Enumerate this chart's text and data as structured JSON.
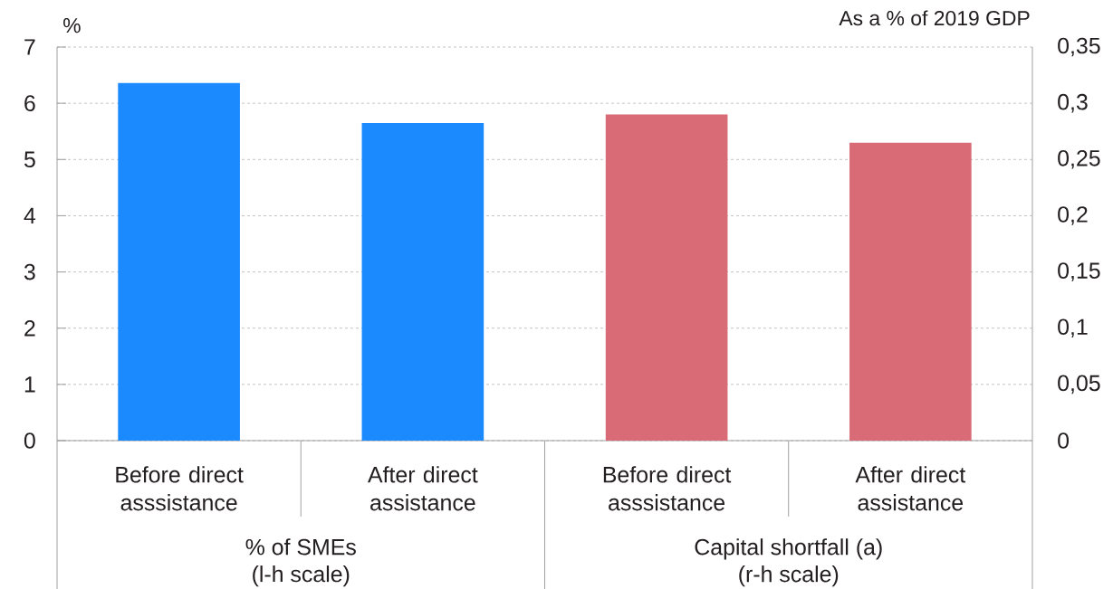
{
  "chart_data": {
    "type": "bar",
    "ylabel": "%",
    "y2label": "As a % of 2019 GDP",
    "categories": [
      "Before direct asssistance",
      "After direct assistance",
      "Before direct asssistance",
      "After direct assistance"
    ],
    "series": [
      {
        "color": "#1b8aff",
        "values": [
          6.36,
          5.65,
          null,
          null
        ]
      },
      {
        "color": "#d96b77",
        "axis": "y2",
        "values": [
          null,
          null,
          0.29,
          0.265
        ]
      }
    ],
    "ylim": [
      0,
      7
    ],
    "yticks": [
      0,
      1,
      2,
      3,
      4,
      5,
      6,
      7
    ],
    "y2lim": [
      0,
      0.35
    ],
    "y2ticks": [
      0,
      {
        "value": 0.05,
        "label": "0,05"
      },
      {
        "value": 0.1,
        "label": "0,1"
      },
      {
        "value": 0.15,
        "label": "0,15"
      },
      {
        "value": 0.2,
        "label": "0,2"
      },
      {
        "value": 0.25,
        "label": "0,25"
      },
      {
        "value": 0.3,
        "label": "0,3"
      },
      {
        "value": 0.35,
        "label": "0,35"
      }
    ],
    "grid": "y",
    "annotations": [
      "% of SMEs (l-h scale)",
      "Capital shortfall (a) (r-h scale)"
    ]
  }
}
